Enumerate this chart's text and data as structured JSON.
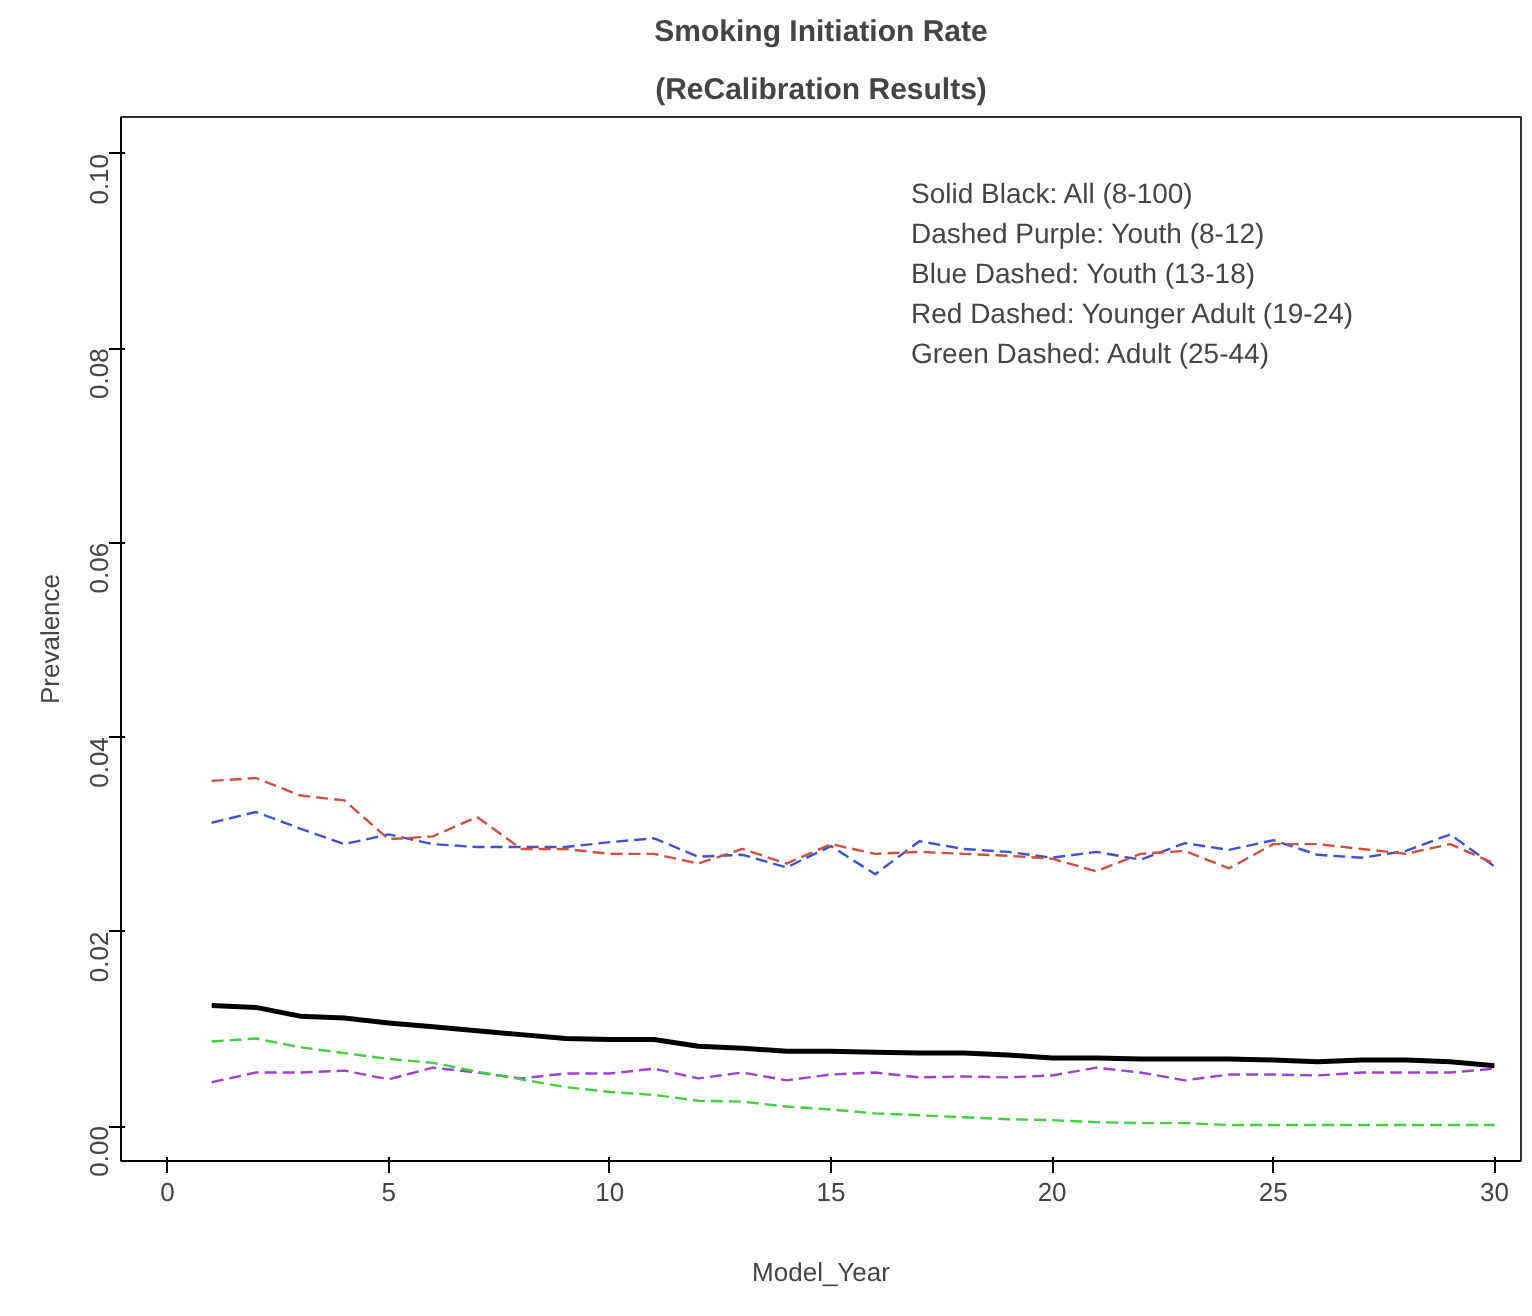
{
  "chart_data": {
    "type": "line",
    "title": "Smoking Initiation Rate",
    "subtitle": "(ReCalibration Results)",
    "xlabel": "Model_Year",
    "ylabel": "Prevalence",
    "x": [
      1,
      2,
      3,
      4,
      5,
      6,
      7,
      8,
      9,
      10,
      11,
      12,
      13,
      14,
      15,
      16,
      17,
      18,
      19,
      20,
      21,
      22,
      23,
      24,
      25,
      26,
      27,
      28,
      29,
      30
    ],
    "series": [
      {
        "color": "#000000",
        "line_style": "solid",
        "values": [
          0.0124,
          0.0122,
          0.0113,
          0.0111,
          0.0106,
          0.0102,
          0.0098,
          0.0094,
          0.009,
          0.0089,
          0.0089,
          0.0082,
          0.008,
          0.0077,
          0.0077,
          0.0076,
          0.0075,
          0.0075,
          0.0073,
          0.007,
          0.007,
          0.0069,
          0.0069,
          0.0069,
          0.0068,
          0.0066,
          0.0068,
          0.0068,
          0.0066,
          0.0062
        ]
      },
      {
        "color": "#a040d0",
        "line_style": "dashed",
        "values": [
          0.0045,
          0.0055,
          0.0055,
          0.0057,
          0.0048,
          0.006,
          0.0055,
          0.0049,
          0.0054,
          0.0054,
          0.0059,
          0.0049,
          0.0055,
          0.0047,
          0.0053,
          0.0055,
          0.005,
          0.0051,
          0.005,
          0.0052,
          0.006,
          0.0055,
          0.0047,
          0.0053,
          0.0053,
          0.0052,
          0.0055,
          0.0055,
          0.0055,
          0.0059
        ]
      },
      {
        "color": "#4050d0",
        "line_style": "dashed",
        "values": [
          0.0312,
          0.0323,
          0.0306,
          0.029,
          0.03,
          0.029,
          0.0287,
          0.0287,
          0.0287,
          0.0292,
          0.0296,
          0.0277,
          0.0279,
          0.0266,
          0.0288,
          0.0259,
          0.0293,
          0.0285,
          0.0282,
          0.0276,
          0.0282,
          0.0274,
          0.0291,
          0.0284,
          0.0294,
          0.0279,
          0.0276,
          0.0283,
          0.03,
          0.0267
        ]
      },
      {
        "color": "#d05040",
        "line_style": "dashed",
        "values": [
          0.0355,
          0.0358,
          0.034,
          0.0335,
          0.0295,
          0.0298,
          0.0318,
          0.0285,
          0.0285,
          0.028,
          0.028,
          0.027,
          0.0285,
          0.027,
          0.029,
          0.028,
          0.0282,
          0.028,
          0.0278,
          0.0275,
          0.0262,
          0.028,
          0.0283,
          0.0265,
          0.029,
          0.029,
          0.0285,
          0.028,
          0.029,
          0.027
        ]
      },
      {
        "color": "#40d040",
        "line_style": "dashed",
        "values": [
          0.0087,
          0.009,
          0.0081,
          0.0075,
          0.0069,
          0.0065,
          0.0056,
          0.0048,
          0.004,
          0.0035,
          0.0032,
          0.0026,
          0.0025,
          0.002,
          0.0017,
          0.0013,
          0.0011,
          0.0009,
          0.0007,
          0.0006,
          0.0004,
          0.0003,
          0.0003,
          0.0001,
          0.0001,
          0.0001,
          0.0001,
          0.0001,
          0.0001,
          0.0001
        ]
      }
    ],
    "annotations": [
      "Solid Black:   All (8-100)",
      "Dashed Purple: Youth (8-12)",
      "Blue Dashed:   Youth  (13-18)",
      "Red Dashed:    Younger Adult (19-24)",
      "Green Dashed:  Adult (25-44)"
    ],
    "xlim": [
      -1.05,
      30.6
    ],
    "ylim": [
      -0.0036,
      0.1038
    ],
    "xticks": [
      0,
      5,
      10,
      15,
      20,
      25,
      30
    ],
    "yticks": [
      {
        "value": 0,
        "label": "0.00"
      },
      {
        "value": 0.02,
        "label": "0.02"
      },
      {
        "value": 0.04,
        "label": "0.04"
      },
      {
        "value": 0.06,
        "label": "0.06"
      },
      {
        "value": 0.08,
        "label": "0.08"
      },
      {
        "value": 0.1,
        "label": "0.10"
      }
    ],
    "grid": false
  }
}
